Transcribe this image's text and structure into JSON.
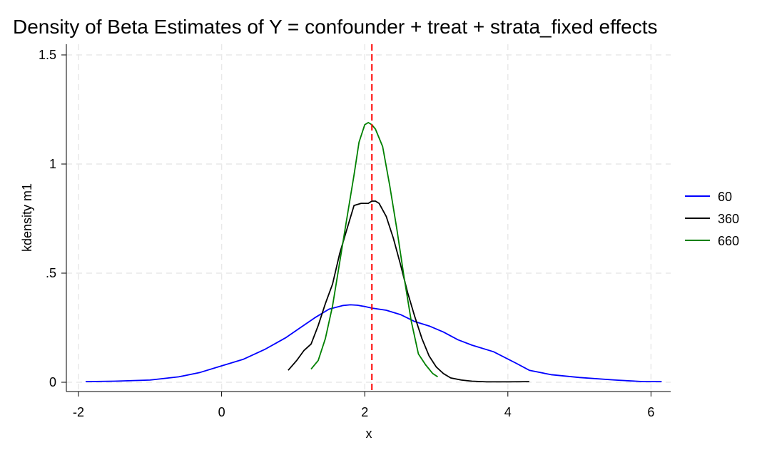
{
  "chart_data": {
    "type": "line",
    "title": "Density of Beta Estimates of Y = confounder + treat + strata_fixed effects",
    "xlabel": "x",
    "ylabel": "kdensity m1",
    "xlim": [
      -2,
      6
    ],
    "ylim": [
      0,
      1.5
    ],
    "xticks": [
      {
        "value": -2,
        "label": "-2"
      },
      {
        "value": 0,
        "label": "0"
      },
      {
        "value": 2,
        "label": "2"
      },
      {
        "value": 4,
        "label": "4"
      },
      {
        "value": 6,
        "label": "6"
      }
    ],
    "yticks": [
      {
        "value": 0,
        "label": "0"
      },
      {
        "value": 0.5,
        "label": ".5"
      },
      {
        "value": 1,
        "label": "1"
      },
      {
        "value": 1.5,
        "label": "1.5"
      }
    ],
    "grid": true,
    "legend_position": "right",
    "reference_line": {
      "x": 2.1,
      "color": "#ff0000",
      "style": "dashed"
    },
    "series": [
      {
        "name": "60",
        "color": "#0000ff",
        "x": [
          -1.9,
          -1.5,
          -1.0,
          -0.6,
          -0.3,
          0.0,
          0.3,
          0.6,
          0.9,
          1.1,
          1.3,
          1.5,
          1.7,
          1.8,
          1.9,
          2.0,
          2.1,
          2.3,
          2.5,
          2.7,
          2.9,
          3.1,
          3.3,
          3.5,
          3.8,
          4.1,
          4.3,
          4.6,
          5.0,
          5.5,
          5.9,
          6.15
        ],
        "y": [
          0.003,
          0.005,
          0.01,
          0.025,
          0.045,
          0.075,
          0.105,
          0.15,
          0.205,
          0.25,
          0.295,
          0.335,
          0.352,
          0.355,
          0.353,
          0.347,
          0.34,
          0.33,
          0.31,
          0.278,
          0.258,
          0.23,
          0.195,
          0.17,
          0.14,
          0.09,
          0.055,
          0.035,
          0.022,
          0.01,
          0.003,
          0.003
        ]
      },
      {
        "name": "360",
        "color": "#000000",
        "x": [
          0.93,
          1.05,
          1.15,
          1.25,
          1.35,
          1.45,
          1.55,
          1.65,
          1.75,
          1.85,
          1.95,
          2.05,
          2.1,
          2.15,
          2.2,
          2.3,
          2.4,
          2.5,
          2.6,
          2.7,
          2.8,
          2.9,
          3.0,
          3.1,
          3.2,
          3.35,
          3.5,
          3.7,
          4.0,
          4.3
        ],
        "y": [
          0.055,
          0.1,
          0.145,
          0.175,
          0.26,
          0.36,
          0.45,
          0.59,
          0.7,
          0.81,
          0.82,
          0.82,
          0.83,
          0.83,
          0.82,
          0.76,
          0.66,
          0.54,
          0.41,
          0.3,
          0.2,
          0.12,
          0.07,
          0.04,
          0.02,
          0.01,
          0.005,
          0.002,
          0.002,
          0.003
        ]
      },
      {
        "name": "660",
        "color": "#008000",
        "x": [
          1.25,
          1.35,
          1.45,
          1.55,
          1.65,
          1.75,
          1.85,
          1.92,
          2.0,
          2.05,
          2.1,
          2.15,
          2.25,
          2.35,
          2.45,
          2.55,
          2.65,
          2.75,
          2.85,
          2.95,
          3.02
        ],
        "y": [
          0.06,
          0.1,
          0.2,
          0.35,
          0.55,
          0.75,
          0.95,
          1.1,
          1.18,
          1.19,
          1.18,
          1.16,
          1.08,
          0.9,
          0.7,
          0.48,
          0.28,
          0.13,
          0.08,
          0.04,
          0.025
        ]
      }
    ]
  }
}
